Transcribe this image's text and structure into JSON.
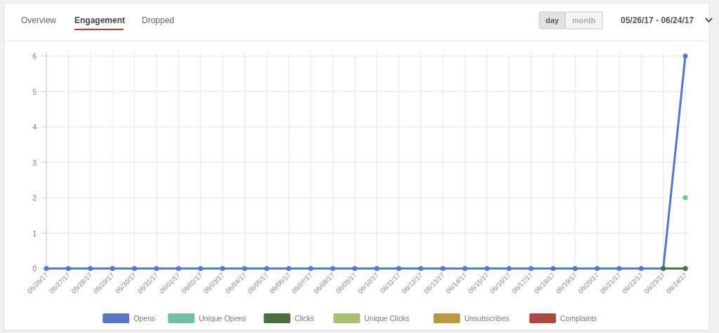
{
  "chart_data": {
    "type": "line",
    "categories": [
      "05/26/17",
      "05/27/17",
      "05/28/17",
      "05/29/17",
      "05/30/17",
      "05/31/17",
      "06/01/17",
      "06/02/17",
      "06/03/17",
      "06/04/17",
      "06/05/17",
      "06/06/17",
      "06/07/17",
      "06/08/17",
      "06/09/17",
      "06/10/17",
      "06/11/17",
      "06/12/17",
      "06/13/17",
      "06/14/17",
      "06/15/17",
      "06/16/17",
      "06/17/17",
      "06/18/17",
      "06/19/17",
      "06/20/17",
      "06/21/17",
      "06/22/17",
      "06/23/17",
      "06/24/17"
    ],
    "series": [
      {
        "name": "Opens",
        "color": "#5677c4",
        "values": [
          0,
          0,
          0,
          0,
          0,
          0,
          0,
          0,
          0,
          0,
          0,
          0,
          0,
          0,
          0,
          0,
          0,
          0,
          0,
          0,
          0,
          0,
          0,
          0,
          0,
          0,
          0,
          0,
          0,
          6
        ]
      },
      {
        "name": "Unique Opens",
        "color": "#72bfa8",
        "values": [
          null,
          null,
          null,
          null,
          null,
          null,
          null,
          null,
          null,
          null,
          null,
          null,
          null,
          null,
          null,
          null,
          null,
          null,
          null,
          null,
          null,
          null,
          null,
          null,
          null,
          null,
          null,
          null,
          null,
          2
        ]
      },
      {
        "name": "Clicks",
        "color": "#4a6e3c",
        "values": [
          null,
          null,
          null,
          null,
          null,
          null,
          null,
          null,
          null,
          null,
          null,
          null,
          null,
          null,
          null,
          null,
          null,
          null,
          null,
          null,
          null,
          null,
          null,
          null,
          null,
          null,
          null,
          null,
          0,
          0
        ]
      },
      {
        "name": "Unique Clicks",
        "color": "#a8c072",
        "values": [
          null,
          null,
          null,
          null,
          null,
          null,
          null,
          null,
          null,
          null,
          null,
          null,
          null,
          null,
          null,
          null,
          null,
          null,
          null,
          null,
          null,
          null,
          null,
          null,
          null,
          null,
          null,
          null,
          null,
          null
        ]
      },
      {
        "name": "Unsubscribes",
        "color": "#b8993e",
        "values": [
          null,
          null,
          null,
          null,
          null,
          null,
          null,
          null,
          null,
          null,
          null,
          null,
          null,
          null,
          null,
          null,
          null,
          null,
          null,
          null,
          null,
          null,
          null,
          null,
          null,
          null,
          null,
          null,
          null,
          null
        ]
      },
      {
        "name": "Complaints",
        "color": "#a84a3f",
        "values": [
          null,
          null,
          null,
          null,
          null,
          null,
          null,
          null,
          null,
          null,
          null,
          null,
          null,
          null,
          null,
          null,
          null,
          null,
          null,
          null,
          null,
          null,
          null,
          null,
          null,
          null,
          null,
          null,
          null,
          null
        ]
      }
    ],
    "ylim": [
      0,
      6
    ],
    "yticks": [
      0,
      1,
      2,
      3,
      4,
      5,
      6
    ],
    "grid": true,
    "legend": "bottom",
    "marker": "circle",
    "line_style": "solid",
    "annotations": [
      "Overview",
      "Engagement",
      "Dropped",
      "day",
      "month",
      "05/26/17 - 06/24/17"
    ]
  }
}
